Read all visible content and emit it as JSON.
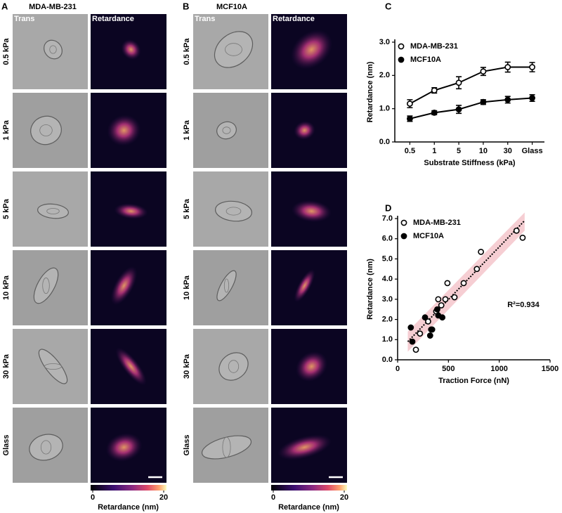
{
  "panels": [
    {
      "letter": "A",
      "title": "MDA-MB-231",
      "columns": [
        "Trans",
        "Retardance"
      ],
      "rows": [
        "0.5 kPa",
        "1 kPa",
        "5 kPa",
        "10 kPa",
        "30 kPa",
        "Glass"
      ],
      "colorbar": {
        "ticks": [
          0,
          20
        ],
        "label": "Retardance (nm)"
      }
    },
    {
      "letter": "B",
      "title": "MCF10A",
      "columns": [
        "Trans",
        "Retardance"
      ],
      "rows": [
        "0.5 kPa",
        "1 kPa",
        "5 kPa",
        "10 kPa",
        "30 kPa",
        "Glass"
      ],
      "colorbar": {
        "ticks": [
          0,
          20
        ],
        "label": "Retardance (nm)"
      }
    }
  ],
  "chart_data": [
    {
      "letter": "C",
      "type": "line",
      "xlabel": "Substrate Stiffness (kPa)",
      "ylabel": "Retardance (nm)",
      "categories": [
        "0.5",
        "1",
        "5",
        "10",
        "30",
        "Glass"
      ],
      "series": [
        {
          "name": "MDA-MB-231",
          "marker": "open",
          "color": "#000000",
          "values": [
            1.15,
            1.55,
            1.78,
            2.12,
            2.25,
            2.25
          ],
          "errors": [
            0.12,
            0.08,
            0.18,
            0.12,
            0.15,
            0.14
          ]
        },
        {
          "name": "MCF10A",
          "marker": "filled",
          "color": "#000000",
          "values": [
            0.7,
            0.88,
            0.98,
            1.2,
            1.27,
            1.32
          ],
          "errors": [
            0.08,
            0.06,
            0.12,
            0.07,
            0.1,
            0.1
          ]
        }
      ],
      "ylim": [
        0,
        3
      ],
      "yticks": [
        {
          "value": 0,
          "label": "0.0"
        },
        {
          "value": 1,
          "label": "1.0"
        },
        {
          "value": 2,
          "label": "2.0"
        },
        {
          "value": 3,
          "label": "3.0"
        }
      ]
    },
    {
      "letter": "D",
      "type": "scatter",
      "xlabel": "Traction Force (nN)",
      "ylabel": "Retardance (nm)",
      "annotation": "R²=0.934",
      "series": [
        {
          "name": "MDA-MB-231",
          "marker": "open",
          "color": "#000000",
          "x": [
            180,
            220,
            300,
            340,
            380,
            400,
            430,
            470,
            490,
            560,
            650,
            780,
            820,
            1170,
            1230
          ],
          "values": [
            0.5,
            1.3,
            1.9,
            1.5,
            2.4,
            3.0,
            2.7,
            3.0,
            3.8,
            3.1,
            3.8,
            4.5,
            5.35,
            6.4,
            6.05
          ]
        },
        {
          "name": "MCF10A",
          "marker": "filled",
          "color": "#000000",
          "x": [
            130,
            145,
            270,
            320,
            330,
            400,
            440,
            390
          ],
          "values": [
            1.6,
            0.9,
            2.1,
            1.2,
            1.5,
            2.2,
            2.1,
            2.5
          ]
        }
      ],
      "trendline": {
        "x": [
          100,
          1250
        ],
        "y": [
          0.9,
          6.9
        ],
        "lower": [
          0.4,
          6.4
        ],
        "upper": [
          1.4,
          7.3
        ],
        "color": "#f4c2c8"
      },
      "xlim": [
        0,
        1500
      ],
      "xticks": [
        0,
        500,
        1000,
        1500
      ],
      "ylim": [
        0,
        7
      ],
      "yticks": [
        {
          "value": 0,
          "label": "0.0"
        },
        {
          "value": 1,
          "label": "1.0"
        },
        {
          "value": 2,
          "label": "2.0"
        },
        {
          "value": 3,
          "label": "3.0"
        },
        {
          "value": 4,
          "label": "4.0"
        },
        {
          "value": 5,
          "label": "5.0"
        },
        {
          "value": 6,
          "label": "6.0"
        },
        {
          "value": 7,
          "label": "7.0"
        }
      ]
    }
  ]
}
